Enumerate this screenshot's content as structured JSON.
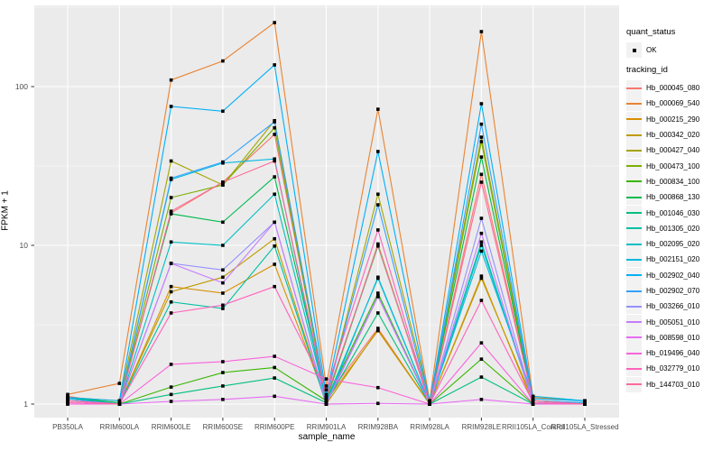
{
  "chart_data": {
    "type": "line",
    "title": "",
    "xlabel": "sample_name",
    "ylabel": "FPKM + 1",
    "y_scale": "log10",
    "y_ticks": [
      "1",
      "10",
      "100"
    ],
    "ylim_log10": [
      -0.03,
      2.6
    ],
    "grid": "on",
    "panel_background": "#EBEBEB",
    "gridline_color": "#FFFFFF",
    "point_color": "#000000",
    "legend_position": "right",
    "categories": [
      "PB350LA",
      "RRIM600LA",
      "RRIM600LE",
      "RRIM600SE",
      "RRIM600PE",
      "RRIM901LA",
      "RRIM928BA",
      "RRIM928LA",
      "RRIM928LE",
      "RRII105LA_Control",
      "RRII105LA_Stressed"
    ],
    "series": [
      {
        "name": "Hb_000045_080",
        "color": "#F8766D",
        "values": [
          1.12,
          1.0,
          16,
          25,
          50,
          1.1,
          3.0,
          1.0,
          28,
          1.05,
          1.0
        ]
      },
      {
        "name": "Hb_000069_540",
        "color": "#EA8331",
        "values": [
          1.15,
          1.35,
          110,
          145,
          253,
          1.3,
          72,
          1.05,
          222,
          1.1,
          1.05
        ]
      },
      {
        "name": "Hb_000215_290",
        "color": "#D89000",
        "values": [
          1.05,
          1.0,
          5.5,
          5.0,
          7.6,
          1.05,
          2.9,
          1.0,
          6.4,
          1.0,
          1.0
        ]
      },
      {
        "name": "Hb_000342_020",
        "color": "#C09B00",
        "values": [
          1.08,
          1.0,
          5.1,
          6.3,
          11,
          1.0,
          2.95,
          1.0,
          6.2,
          1.05,
          1.0
        ]
      },
      {
        "name": "Hb_000427_040",
        "color": "#A3A500",
        "values": [
          1.1,
          1.05,
          34,
          24,
          61,
          1.1,
          21,
          1.05,
          48,
          1.05,
          1.02
        ]
      },
      {
        "name": "Hb_000473_100",
        "color": "#7CAE00",
        "values": [
          1.05,
          1.0,
          20,
          24,
          55,
          1.05,
          10.2,
          1.0,
          45,
          1.02,
          1.0
        ]
      },
      {
        "name": "Hb_000834_100",
        "color": "#39B600",
        "values": [
          1.05,
          1.0,
          1.28,
          1.58,
          1.7,
          1.05,
          5.0,
          1.0,
          1.92,
          1.0,
          1.0
        ]
      },
      {
        "name": "Hb_000868_130",
        "color": "#00BB4E",
        "values": [
          1.1,
          1.02,
          15.8,
          14,
          27,
          1.08,
          9.9,
          1.02,
          36,
          1.05,
          1.0
        ]
      },
      {
        "name": "Hb_001046_030",
        "color": "#00BF7D",
        "values": [
          1.1,
          1.0,
          1.15,
          1.3,
          1.46,
          1.02,
          3.75,
          1.0,
          1.48,
          1.0,
          1.0
        ]
      },
      {
        "name": "Hb_001305_020",
        "color": "#00C1A3",
        "values": [
          1.05,
          1.0,
          4.4,
          4.0,
          9.9,
          1.0,
          4.8,
          1.0,
          10.5,
          1.02,
          1.0
        ]
      },
      {
        "name": "Hb_002095_020",
        "color": "#00BFC4",
        "values": [
          1.08,
          1.0,
          10.5,
          10,
          21,
          1.05,
          6.2,
          1.0,
          10,
          1.05,
          1.02
        ]
      },
      {
        "name": "Hb_002151_020",
        "color": "#00BAE0",
        "values": [
          1.05,
          1.0,
          26,
          33,
          35,
          1.0,
          6.3,
          1.0,
          9.2,
          1.12,
          1.05
        ]
      },
      {
        "name": "Hb_002902_040",
        "color": "#00B0F6",
        "values": [
          1.1,
          1.05,
          75,
          70,
          137,
          1.15,
          39,
          1.02,
          78,
          1.08,
          1.05
        ]
      },
      {
        "name": "Hb_002902_070",
        "color": "#35A2FF",
        "values": [
          1.08,
          1.0,
          26.5,
          33.5,
          60,
          1.1,
          18,
          1.0,
          58,
          1.05,
          1.02
        ]
      },
      {
        "name": "Hb_003266_010",
        "color": "#9590FF",
        "values": [
          1.05,
          1.0,
          7.7,
          7.0,
          14,
          1.02,
          4.8,
          1.0,
          14.8,
          1.02,
          1.0
        ]
      },
      {
        "name": "Hb_005051_010",
        "color": "#C77CFF",
        "values": [
          1.05,
          1.0,
          7.7,
          5.8,
          14,
          1.0,
          4.75,
          1.0,
          11.9,
          1.0,
          1.0
        ]
      },
      {
        "name": "Hb_008598_010",
        "color": "#E76BF3",
        "values": [
          1.0,
          1.0,
          1.04,
          1.07,
          1.12,
          1.0,
          1.01,
          1.0,
          1.07,
          1.0,
          1.0
        ]
      },
      {
        "name": "Hb_019496_040",
        "color": "#FA62DB",
        "values": [
          1.0,
          1.0,
          1.78,
          1.85,
          2.0,
          1.44,
          1.27,
          1.0,
          2.43,
          1.0,
          1.0
        ]
      },
      {
        "name": "Hb_032779_010",
        "color": "#FF62BC",
        "values": [
          1.02,
          1.0,
          3.75,
          4.2,
          5.5,
          1.23,
          12.5,
          1.0,
          4.5,
          1.02,
          1.0
        ]
      },
      {
        "name": "Hb_144703_010",
        "color": "#FF6A98",
        "values": [
          1.05,
          1.0,
          16.4,
          25,
          34,
          1.1,
          10,
          1.0,
          25,
          1.05,
          1.0
        ]
      }
    ]
  },
  "legend": {
    "quant_status_title": "quant_status",
    "quant_status_ok_label": "OK",
    "tracking_id_title": "tracking_id"
  }
}
